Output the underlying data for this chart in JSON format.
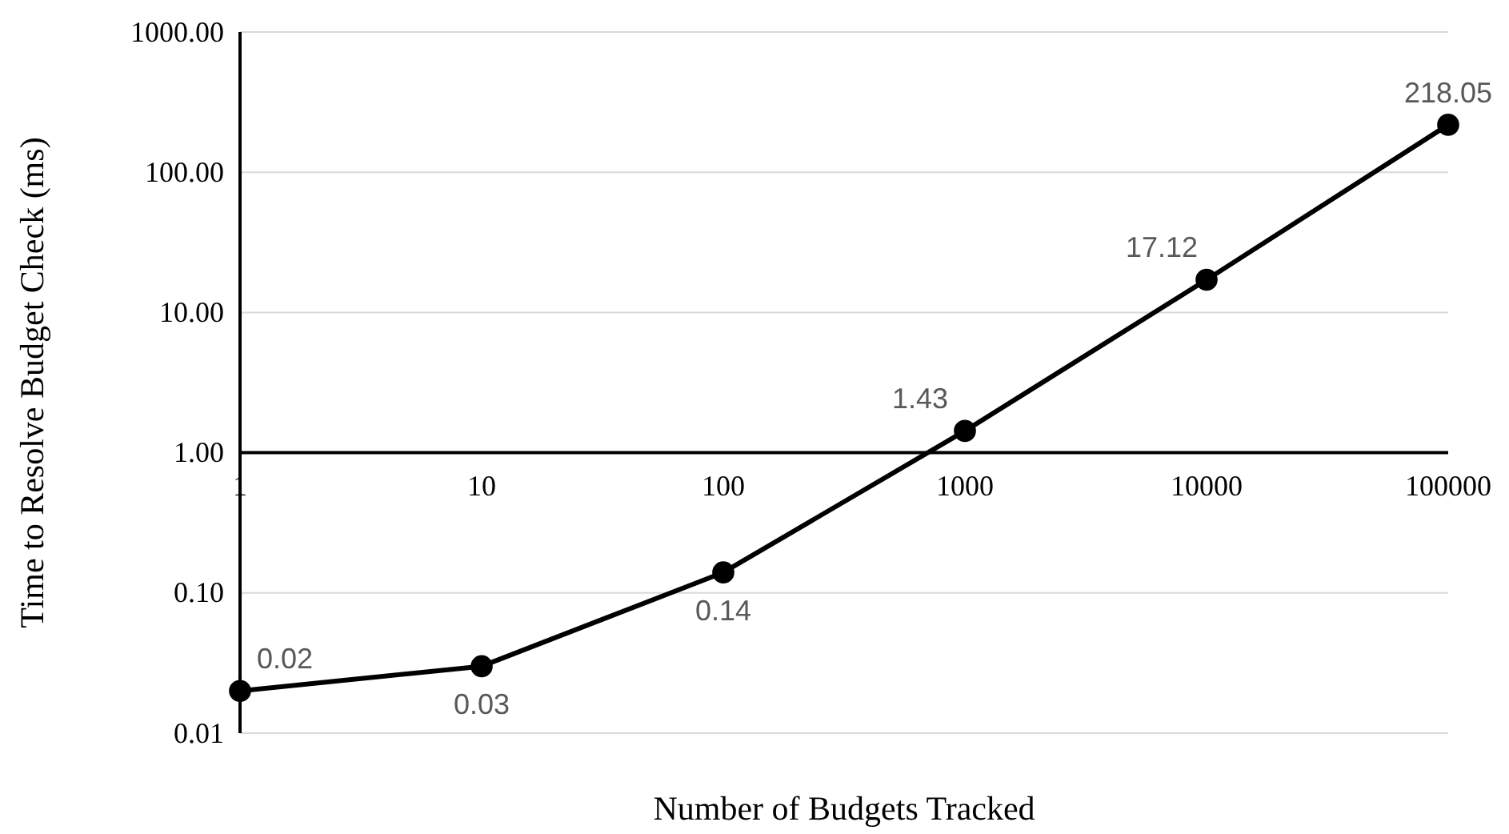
{
  "chart_data": {
    "type": "line",
    "xlabel": "Number of Budgets Tracked",
    "ylabel": "Time to Resolve Budget Check (ms)",
    "x": [
      1,
      10,
      100,
      1000,
      10000,
      100000
    ],
    "series": [
      {
        "color": "#000000",
        "values": [
          0.02,
          0.03,
          0.14,
          1.43,
          17.12,
          218.05
        ],
        "value_labels": [
          "0.02",
          "0.03",
          "0.14",
          "1.43",
          "17.12",
          "218.05"
        ]
      }
    ],
    "log": "xy",
    "xlim": [
      1,
      100000
    ],
    "xticks": [
      1,
      10,
      100,
      1000,
      10000,
      100000
    ],
    "ylim": [
      0.01,
      1000
    ],
    "yticks": [
      {
        "value": 0.01,
        "label": "0.01"
      },
      {
        "value": 0.1,
        "label": "0.10"
      },
      {
        "value": 1,
        "label": "1.00"
      },
      {
        "value": 10,
        "label": "10.00"
      },
      {
        "value": 100,
        "label": "100.00"
      },
      {
        "value": 1000,
        "label": "1000.00"
      }
    ],
    "grid": "y",
    "marker": "circle",
    "line_style": "solid"
  }
}
